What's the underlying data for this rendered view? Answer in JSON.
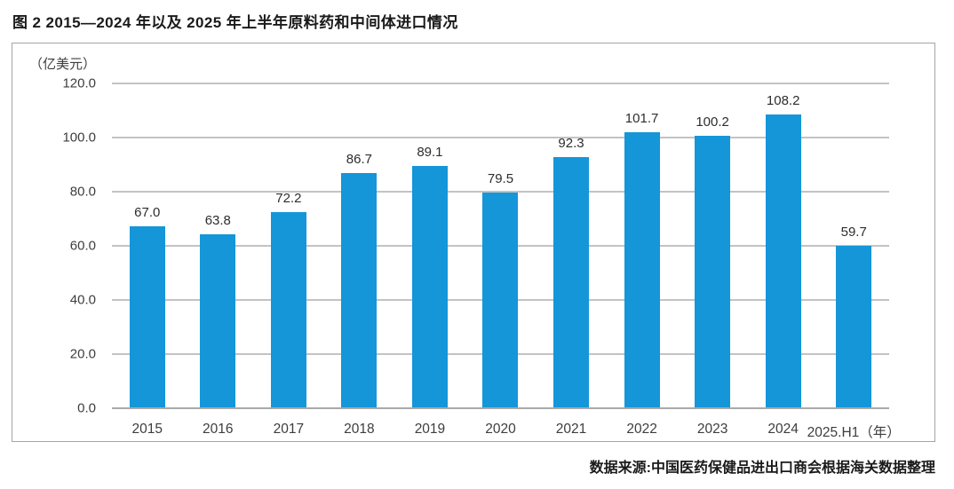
{
  "figure": {
    "title": "图 2  2015—2024 年以及 2025 年上半年原料药和中间体进口情况",
    "source_note": "数据来源:中国医药保健品进出口商会根据海关数据整理"
  },
  "chart_data": {
    "type": "bar",
    "title": "图 2  2015—2024 年以及 2025 年上半年原料药和中间体进口情况",
    "unit_label": "（亿美元）",
    "categories": [
      "2015",
      "2016",
      "2017",
      "2018",
      "2019",
      "2020",
      "2021",
      "2022",
      "2023",
      "2024",
      "2025.H1（年）"
    ],
    "values": [
      67.0,
      63.8,
      72.2,
      86.7,
      89.1,
      79.5,
      92.3,
      101.7,
      100.2,
      108.2,
      59.7
    ],
    "ylim": [
      0,
      120
    ],
    "ytick_interval": 20,
    "ytick_labels": [
      "120.0",
      "100.0",
      "80.0",
      "60.0",
      "40.0",
      "20.0",
      "0.0"
    ],
    "grid": true,
    "legend_position": "none",
    "value_labels_shown": true,
    "bar_color": "#1496d9",
    "gridline_color": "#c3c3c3",
    "axis_line_color": "#a9a9a9"
  }
}
